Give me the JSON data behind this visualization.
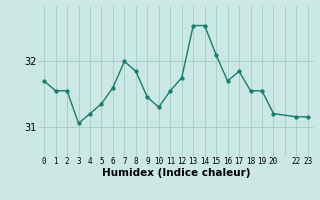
{
  "x": [
    0,
    1,
    2,
    3,
    4,
    5,
    6,
    7,
    8,
    9,
    10,
    11,
    12,
    13,
    14,
    15,
    16,
    17,
    18,
    19,
    20,
    22,
    23
  ],
  "y": [
    31.7,
    31.55,
    31.55,
    31.05,
    31.2,
    31.35,
    31.6,
    32.0,
    31.85,
    31.45,
    31.3,
    31.55,
    31.75,
    32.55,
    32.55,
    32.1,
    31.7,
    31.85,
    31.55,
    31.55,
    31.2,
    31.15,
    31.15
  ],
  "line_color": "#1a7a6e",
  "marker": "o",
  "markersize": 2.5,
  "linewidth": 1.0,
  "bg_color": "#cce8e4",
  "plot_bg_color": "#cce8e4",
  "grid_color": "#aacfca",
  "xlabel": "Humidex (Indice chaleur)",
  "xlabel_fontsize": 7.5,
  "ytick_labels": [
    "31",
    "32"
  ],
  "ytick_values": [
    31,
    32
  ],
  "xtick_labels": [
    "0",
    "1",
    "2",
    "3",
    "4",
    "5",
    "6",
    "7",
    "8",
    "9",
    "10",
    "11",
    "12",
    "13",
    "14",
    "15",
    "16",
    "17",
    "18",
    "19",
    "20",
    "",
    "22",
    "23"
  ],
  "xtick_positions": [
    0,
    1,
    2,
    3,
    4,
    5,
    6,
    7,
    8,
    9,
    10,
    11,
    12,
    13,
    14,
    15,
    16,
    17,
    18,
    19,
    20,
    21,
    22,
    23
  ],
  "ylim": [
    30.55,
    32.85
  ],
  "xlim": [
    -0.5,
    23.5
  ]
}
